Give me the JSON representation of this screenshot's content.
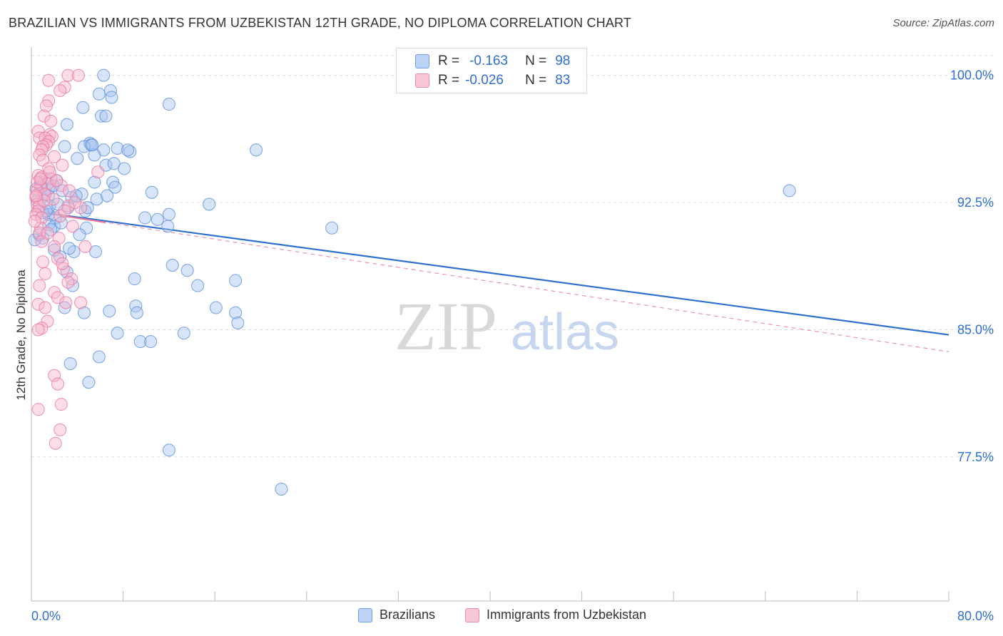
{
  "title": "BRAZILIAN VS IMMIGRANTS FROM UZBEKISTAN 12TH GRADE, NO DIPLOMA CORRELATION CHART",
  "source": "Source: ZipAtlas.com",
  "watermark": {
    "zip": "ZIP",
    "atlas": "atlas"
  },
  "legend_top": [
    {
      "r_label": "R =",
      "r_value": "-0.163",
      "n_label": "N =",
      "n_value": "98",
      "color": "#6f9fe0",
      "fill": "#bcd3f5"
    },
    {
      "r_label": "R =",
      "r_value": "-0.026",
      "n_label": "N =",
      "n_value": "83",
      "color": "#ee88aa",
      "fill": "#f9c6d6"
    }
  ],
  "chart_data": {
    "type": "scatter",
    "title": "BRAZILIAN VS IMMIGRANTS FROM UZBEKISTAN 12TH GRADE, NO DIPLOMA CORRELATION CHART",
    "xlabel": "",
    "ylabel": "12th Grade, No Diploma",
    "xlim": [
      0,
      80
    ],
    "ylim": [
      69.0,
      101.5
    ],
    "x_tick_labels": [
      {
        "value": 0,
        "label": "0.0%"
      },
      {
        "value": 80,
        "label": "80.0%"
      }
    ],
    "y_tick_labels": [
      {
        "value": 100.0,
        "label": "100.0%"
      },
      {
        "value": 92.5,
        "label": "92.5%"
      },
      {
        "value": 85.0,
        "label": "85.0%"
      },
      {
        "value": 77.5,
        "label": "77.5%"
      }
    ],
    "grid": true,
    "series": [
      {
        "name": "Brazilians",
        "color": "#5b8fdb",
        "fill": "#a9c4ef",
        "trend": {
          "x0": 0,
          "y0": 92.0,
          "x1": 80,
          "y1": 84.7,
          "dashed": false
        },
        "points": [
          [
            6.3,
            100.0
          ],
          [
            5.9,
            98.9
          ],
          [
            6.9,
            99.1
          ],
          [
            7.0,
            98.7
          ],
          [
            4.5,
            98.1
          ],
          [
            6.1,
            97.6
          ],
          [
            6.5,
            97.6
          ],
          [
            3.1,
            97.1
          ],
          [
            12.0,
            98.3
          ],
          [
            5.1,
            96.0
          ],
          [
            5.2,
            95.9
          ],
          [
            2.9,
            95.8
          ],
          [
            4.6,
            95.8
          ],
          [
            6.3,
            95.6
          ],
          [
            7.5,
            95.7
          ],
          [
            8.6,
            95.5
          ],
          [
            19.6,
            95.6
          ],
          [
            5.5,
            95.3
          ],
          [
            4.0,
            95.1
          ],
          [
            6.5,
            94.7
          ],
          [
            7.2,
            94.8
          ],
          [
            8.1,
            94.5
          ],
          [
            1.2,
            93.9
          ],
          [
            2.2,
            93.8
          ],
          [
            5.5,
            93.7
          ],
          [
            7.1,
            93.7
          ],
          [
            0.9,
            93.4
          ],
          [
            1.5,
            93.3
          ],
          [
            1.1,
            93.0
          ],
          [
            2.7,
            93.2
          ],
          [
            4.4,
            93.0
          ],
          [
            7.3,
            93.4
          ],
          [
            10.5,
            93.1
          ],
          [
            66.1,
            93.2
          ],
          [
            1.5,
            92.9
          ],
          [
            3.5,
            92.8
          ],
          [
            5.7,
            92.7
          ],
          [
            15.5,
            92.4
          ],
          [
            1.6,
            92.3
          ],
          [
            3.2,
            92.2
          ],
          [
            4.7,
            92.0
          ],
          [
            1.5,
            91.8
          ],
          [
            2.1,
            91.6
          ],
          [
            12.0,
            91.8
          ],
          [
            9.9,
            91.6
          ],
          [
            11.0,
            91.5
          ],
          [
            1.5,
            91.2
          ],
          [
            2.0,
            91.1
          ],
          [
            4.8,
            91.0
          ],
          [
            11.9,
            91.1
          ],
          [
            26.2,
            91.0
          ],
          [
            4.2,
            90.6
          ],
          [
            1.0,
            90.4
          ],
          [
            0.3,
            90.3
          ],
          [
            2.0,
            89.7
          ],
          [
            3.7,
            89.6
          ],
          [
            5.6,
            89.6
          ],
          [
            2.5,
            89.3
          ],
          [
            12.3,
            88.8
          ],
          [
            13.6,
            88.5
          ],
          [
            3.1,
            88.4
          ],
          [
            9.0,
            88.0
          ],
          [
            17.8,
            87.9
          ],
          [
            14.5,
            87.6
          ],
          [
            3.6,
            87.6
          ],
          [
            9.1,
            86.4
          ],
          [
            2.9,
            86.3
          ],
          [
            16.1,
            86.3
          ],
          [
            6.8,
            86.1
          ],
          [
            4.6,
            86.0
          ],
          [
            9.2,
            86.0
          ],
          [
            17.8,
            86.0
          ],
          [
            18.0,
            85.4
          ],
          [
            7.5,
            84.8
          ],
          [
            13.3,
            84.8
          ],
          [
            9.5,
            84.3
          ],
          [
            10.4,
            84.3
          ],
          [
            5.9,
            83.4
          ],
          [
            3.4,
            83.0
          ],
          [
            5.0,
            81.9
          ],
          [
            12.0,
            77.9
          ],
          [
            21.8,
            75.6
          ],
          [
            0.8,
            93.6
          ],
          [
            1.9,
            93.5
          ],
          [
            0.5,
            92.6
          ],
          [
            2.3,
            92.4
          ],
          [
            1.0,
            91.9
          ],
          [
            3.9,
            92.9
          ],
          [
            6.6,
            92.9
          ],
          [
            0.7,
            90.6
          ],
          [
            5.3,
            95.9
          ],
          [
            3.3,
            89.8
          ],
          [
            8.4,
            95.6
          ],
          [
            4.9,
            92.2
          ],
          [
            1.3,
            92.0
          ],
          [
            2.6,
            91.3
          ],
          [
            1.7,
            90.9
          ],
          [
            0.4,
            93.3
          ]
        ]
      },
      {
        "name": "Immigrants from Uzbekistan",
        "color": "#e8789e",
        "fill": "#f7b5cb",
        "trend": {
          "x0": 0,
          "y0": 92.0,
          "x1": 80,
          "y1": 83.7,
          "dashed": true,
          "solid_until_x": 6.5
        },
        "points": [
          [
            3.2,
            100.0
          ],
          [
            4.1,
            100.0
          ],
          [
            1.5,
            99.7
          ],
          [
            2.9,
            99.3
          ],
          [
            2.5,
            99.1
          ],
          [
            1.5,
            98.5
          ],
          [
            1.3,
            98.2
          ],
          [
            1.1,
            97.6
          ],
          [
            1.7,
            97.3
          ],
          [
            0.6,
            96.7
          ],
          [
            1.6,
            96.5
          ],
          [
            1.8,
            96.4
          ],
          [
            0.7,
            96.3
          ],
          [
            1.2,
            96.3
          ],
          [
            1.5,
            96.1
          ],
          [
            1.3,
            95.9
          ],
          [
            1.0,
            95.8
          ],
          [
            0.9,
            95.6
          ],
          [
            0.7,
            95.3
          ],
          [
            2.0,
            95.2
          ],
          [
            1.0,
            95.0
          ],
          [
            2.7,
            94.7
          ],
          [
            1.5,
            94.5
          ],
          [
            0.6,
            94.1
          ],
          [
            0.9,
            94.0
          ],
          [
            1.7,
            93.9
          ],
          [
            5.8,
            94.3
          ],
          [
            1.4,
            93.6
          ],
          [
            2.6,
            93.5
          ],
          [
            0.8,
            93.4
          ],
          [
            0.5,
            93.2
          ],
          [
            1.2,
            93.0
          ],
          [
            3.3,
            93.2
          ],
          [
            0.4,
            92.8
          ],
          [
            1.9,
            92.7
          ],
          [
            0.5,
            92.4
          ],
          [
            0.7,
            92.3
          ],
          [
            3.2,
            92.3
          ],
          [
            0.6,
            92.0
          ],
          [
            4.3,
            92.2
          ],
          [
            0.4,
            91.8
          ],
          [
            2.5,
            91.7
          ],
          [
            0.9,
            91.6
          ],
          [
            0.8,
            91.0
          ],
          [
            3.6,
            91.1
          ],
          [
            0.7,
            90.7
          ],
          [
            2.4,
            90.4
          ],
          [
            0.9,
            90.2
          ],
          [
            2.0,
            89.9
          ],
          [
            4.7,
            89.9
          ],
          [
            2.3,
            89.2
          ],
          [
            1.0,
            89.0
          ],
          [
            2.8,
            88.6
          ],
          [
            1.2,
            88.3
          ],
          [
            3.5,
            88.0
          ],
          [
            3.2,
            87.8
          ],
          [
            0.7,
            87.6
          ],
          [
            2.0,
            87.2
          ],
          [
            2.3,
            86.9
          ],
          [
            3.0,
            86.6
          ],
          [
            4.3,
            86.6
          ],
          [
            0.6,
            86.5
          ],
          [
            1.2,
            86.3
          ],
          [
            1.4,
            85.5
          ],
          [
            0.9,
            85.1
          ],
          [
            0.6,
            85.0
          ],
          [
            2.0,
            82.3
          ],
          [
            2.3,
            81.8
          ],
          [
            2.6,
            80.6
          ],
          [
            0.6,
            80.3
          ],
          [
            2.5,
            79.1
          ],
          [
            2.1,
            78.3
          ],
          [
            0.5,
            93.7
          ],
          [
            1.1,
            92.6
          ],
          [
            2.2,
            93.8
          ],
          [
            0.3,
            91.4
          ],
          [
            1.6,
            94.3
          ],
          [
            2.9,
            92.0
          ],
          [
            3.8,
            92.5
          ],
          [
            0.8,
            93.9
          ],
          [
            1.4,
            90.7
          ],
          [
            2.7,
            88.9
          ],
          [
            0.4,
            92.9
          ]
        ]
      }
    ]
  },
  "legend_bottom": [
    {
      "label": "Brazilians",
      "color": "#6f9fe0",
      "fill": "#bcd3f5"
    },
    {
      "label": "Immigrants from Uzbekistan",
      "color": "#ee88aa",
      "fill": "#f9c6d6"
    }
  ]
}
